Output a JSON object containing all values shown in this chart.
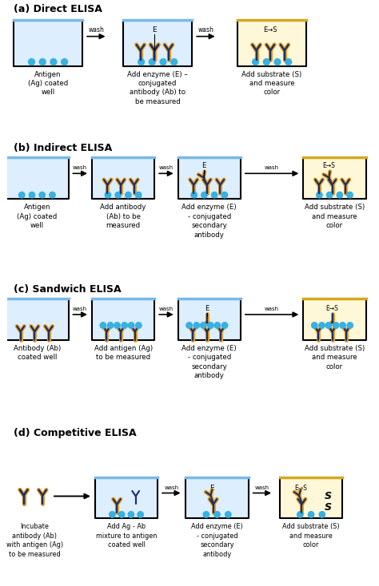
{
  "title_a": "(a) Direct ELISA",
  "title_b": "(b) Indirect ELISA",
  "title_c": "(c) Sandwich ELISA",
  "title_d": "(d) Competitive ELISA",
  "bg_color": "#ffffff",
  "well_fill_blue": "#ddeeff",
  "well_fill_yellow": "#fef8d8",
  "well_border": "#1a1a1a",
  "water_line_blue": "#7ab8e8",
  "water_line_yellow": "#d4a820",
  "ab_color_dark": "#1a2f6e",
  "ab_color_gold": "#e8a020",
  "antigen_color": "#38b0e0",
  "font_size_title": 9,
  "font_size_label": 6.2,
  "font_size_small": 5.5
}
